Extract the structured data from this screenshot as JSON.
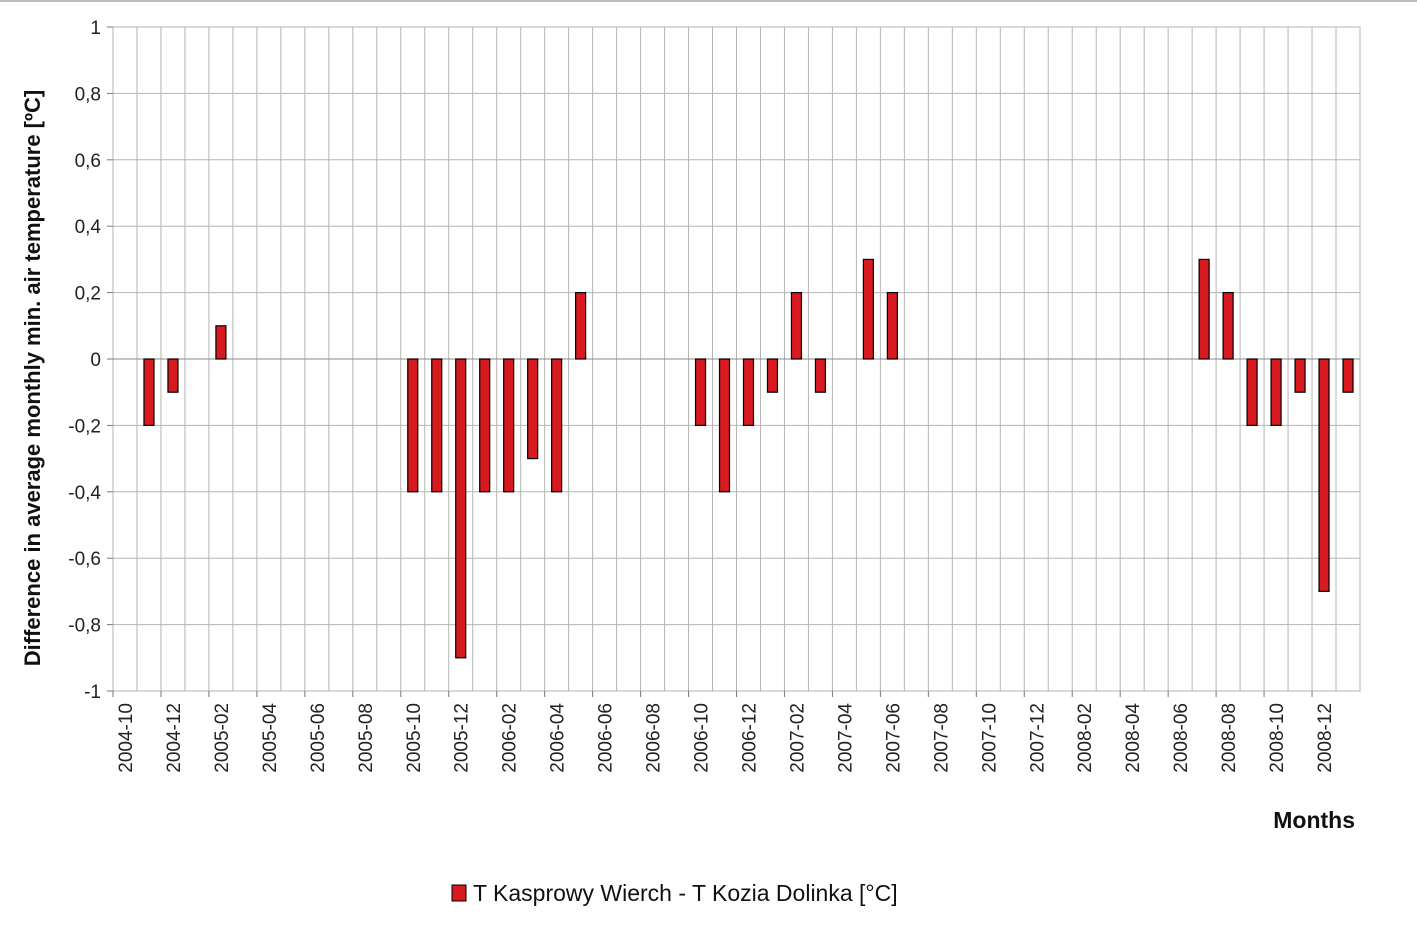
{
  "chart_data": {
    "type": "bar",
    "categories": [
      "2004-10",
      "2004-11",
      "2004-12",
      "2005-01",
      "2005-02",
      "2005-03",
      "2005-04",
      "2005-05",
      "2005-06",
      "2005-07",
      "2005-08",
      "2005-09",
      "2005-10",
      "2005-11",
      "2005-12",
      "2006-01",
      "2006-02",
      "2006-03",
      "2006-04",
      "2006-05",
      "2006-06",
      "2006-07",
      "2006-08",
      "2006-09",
      "2006-10",
      "2006-11",
      "2006-12",
      "2007-01",
      "2007-02",
      "2007-03",
      "2007-04",
      "2007-05",
      "2007-06",
      "2007-07",
      "2007-08",
      "2007-09",
      "2007-10",
      "2007-11",
      "2007-12",
      "2008-01",
      "2008-02",
      "2008-03",
      "2008-04",
      "2008-05",
      "2008-06",
      "2008-07",
      "2008-08",
      "2008-09",
      "2008-10",
      "2008-11",
      "2008-12",
      "2009-01"
    ],
    "x_tick_labels": [
      "2004-10",
      "2004-12",
      "2005-02",
      "2005-04",
      "2005-06",
      "2005-08",
      "2005-10",
      "2005-12",
      "2006-02",
      "2006-04",
      "2006-06",
      "2006-08",
      "2006-10",
      "2006-12",
      "2007-02",
      "2007-04",
      "2007-06",
      "2007-08",
      "2007-10",
      "2007-12",
      "2008-02",
      "2008-04",
      "2008-06",
      "2008-08",
      "2008-10",
      "2008-12"
    ],
    "series": [
      {
        "name": "T Kasprowy Wierch - T Kozia Dolinka [°C]",
        "color": "#d71920",
        "values": [
          null,
          -0.2,
          -0.1,
          null,
          0.1,
          null,
          null,
          null,
          null,
          null,
          null,
          null,
          -0.4,
          -0.4,
          -0.9,
          -0.4,
          -0.4,
          -0.3,
          -0.4,
          0.2,
          null,
          null,
          null,
          null,
          -0.2,
          -0.4,
          -0.2,
          -0.1,
          0.2,
          -0.1,
          null,
          0.3,
          0.2,
          null,
          null,
          null,
          null,
          null,
          null,
          null,
          null,
          null,
          null,
          null,
          null,
          0.3,
          0.2,
          -0.2,
          -0.2,
          -0.1,
          -0.7,
          -0.1
        ]
      }
    ],
    "y_ticks": [
      "1",
      "0,8",
      "0,6",
      "0,4",
      "0,2",
      "0",
      "-0,2",
      "-0,4",
      "-0,6",
      "-0,8",
      "-1"
    ],
    "ylim": [
      -1,
      1
    ],
    "ylabel": "Difference in average monthly min. air temperature [ºC]",
    "xlabel": "Months",
    "grid": true,
    "legend_position": "bottom"
  }
}
